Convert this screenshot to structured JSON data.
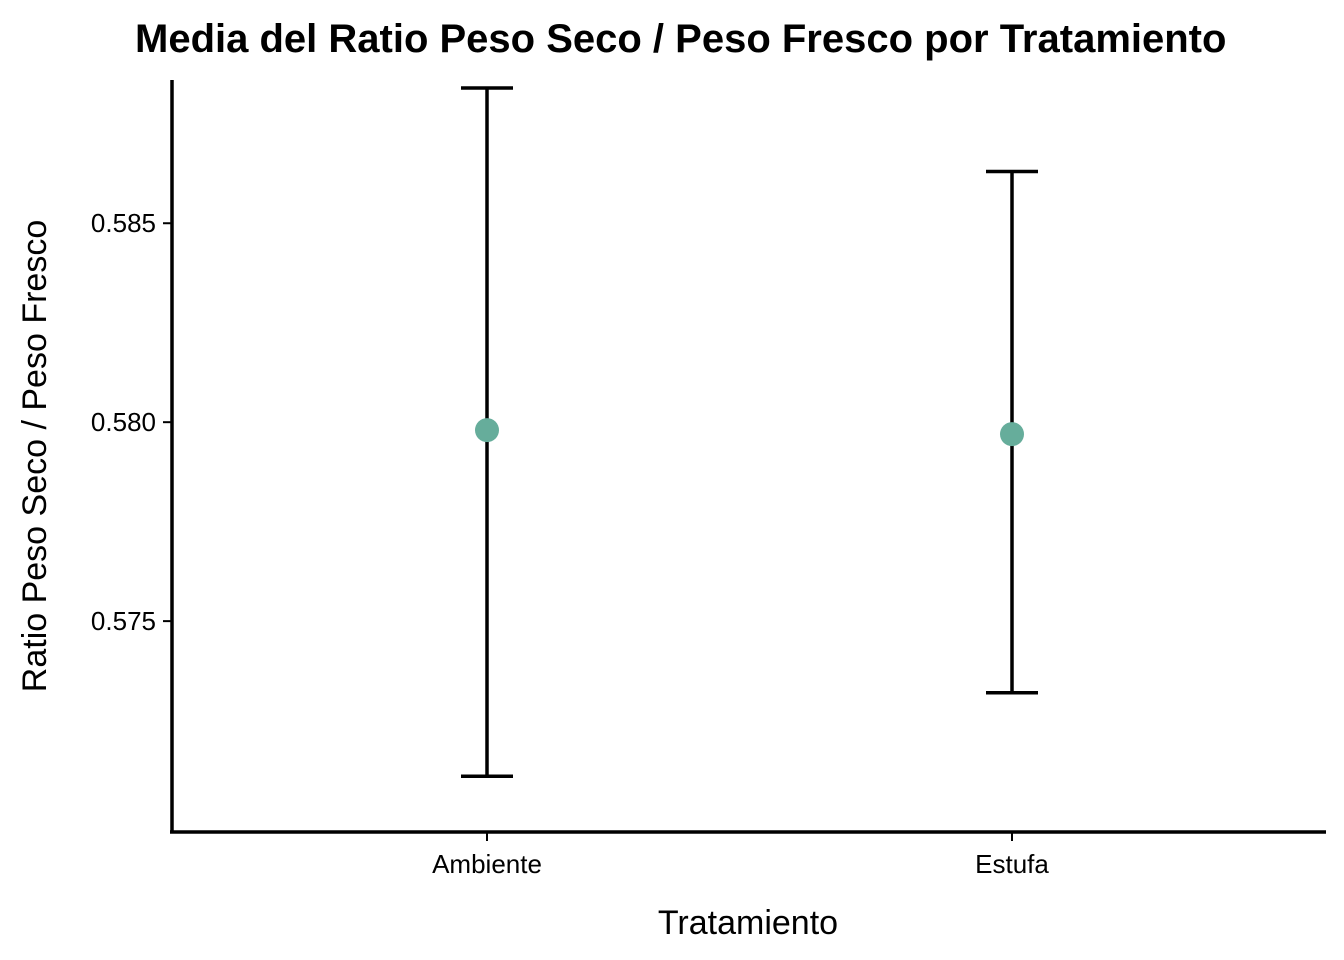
{
  "chart_data": {
    "type": "scatter",
    "title": "Media del Ratio Peso Seco / Peso Fresco por Tratamiento",
    "xlabel": "Tratamiento",
    "ylabel": "Ratio Peso Seco / Peso Fresco",
    "categories": [
      "Ambiente",
      "Estufa"
    ],
    "ylim": [
      0.5697,
      0.5886
    ],
    "yticks": [
      0.575,
      0.58,
      0.585
    ],
    "ytick_labels": [
      "0.575",
      "0.580",
      "0.585"
    ],
    "grid": false,
    "legend": "none",
    "point_color": "#66ad9b",
    "series": [
      {
        "values": [
          0.5798,
          0.5797
        ],
        "error_low": [
          0.5711,
          0.5732
        ],
        "error_high": [
          0.5884,
          0.5863
        ]
      }
    ]
  }
}
